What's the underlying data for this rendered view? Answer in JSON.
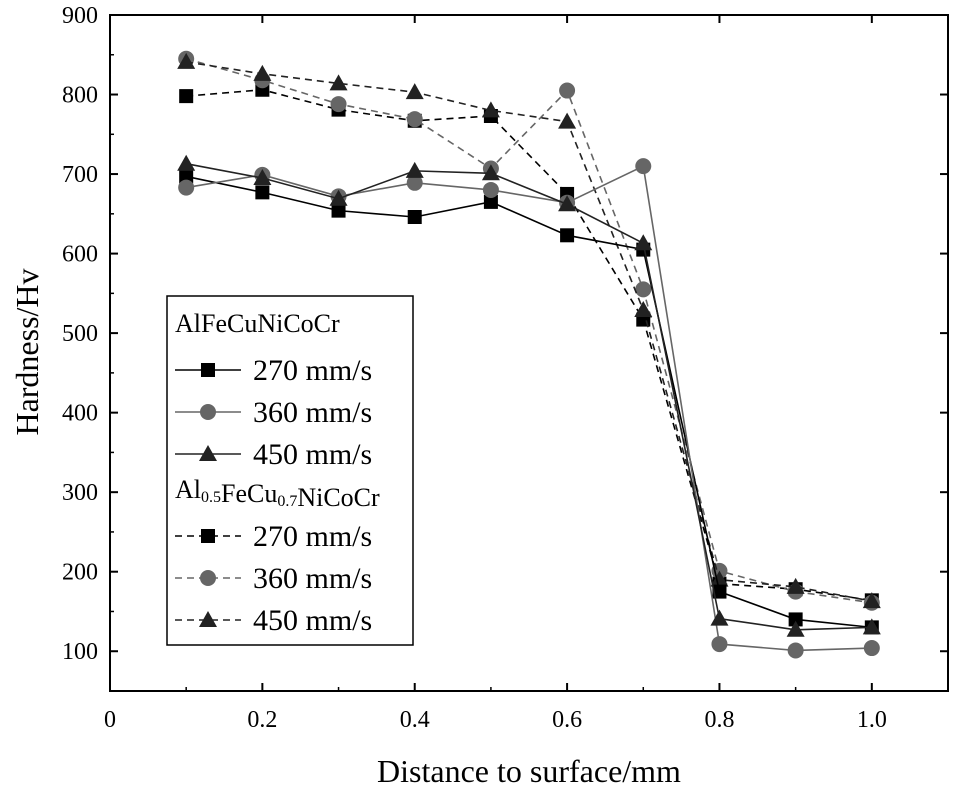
{
  "chart_data": {
    "type": "line",
    "xlabel": "Distance to surface/mm",
    "ylabel": "Hardness/Hv",
    "xlim": [
      0,
      1.1
    ],
    "ylim": [
      50,
      900
    ],
    "xticks": [
      0,
      0.2,
      0.4,
      0.6,
      0.8,
      1.0
    ],
    "xtick_labels": [
      "0",
      "0.2",
      "0.4",
      "0.6",
      "0.8",
      "1.0"
    ],
    "yticks": [
      100,
      200,
      300,
      400,
      500,
      600,
      700,
      800,
      900
    ],
    "ytick_labels": [
      "100",
      "200",
      "300",
      "400",
      "500",
      "600",
      "700",
      "800",
      "900"
    ],
    "x": [
      0.1,
      0.2,
      0.3,
      0.4,
      0.5,
      0.6,
      0.7,
      0.8,
      0.9,
      1.0
    ],
    "legend": {
      "placement": "center-left",
      "groups": [
        {
          "title": "AlFeCuNiCoCr",
          "title_parts": [
            {
              "text": "AlFeCuNiCoCr",
              "sub": false
            }
          ],
          "entries": [
            "270 mm/s",
            "360 mm/s",
            "450 mm/s"
          ]
        },
        {
          "title": "Al0.5FeCu0.7NiCoCr",
          "title_parts": [
            {
              "text": "Al",
              "sub": false
            },
            {
              "text": "0.5",
              "sub": true
            },
            {
              "text": "FeCu",
              "sub": false
            },
            {
              "text": "0.7",
              "sub": true
            },
            {
              "text": "NiCoCr",
              "sub": false
            }
          ],
          "entries": [
            "270 mm/s",
            "360 mm/s",
            "450 mm/s"
          ]
        }
      ]
    },
    "series": [
      {
        "name": "AlFeCuNiCoCr 270 mm/s",
        "group": 0,
        "marker": "square",
        "color": "#000000",
        "dashed": false,
        "values": [
          697,
          677,
          654,
          646,
          665,
          623,
          605,
          175,
          140,
          130
        ]
      },
      {
        "name": "AlFeCuNiCoCr 360 mm/s",
        "group": 0,
        "marker": "circle",
        "color": "#666666",
        "dashed": false,
        "values": [
          683,
          699,
          672,
          689,
          680,
          664,
          710,
          109,
          101,
          104
        ]
      },
      {
        "name": "AlFeCuNiCoCr 450 mm/s",
        "group": 0,
        "marker": "triangle",
        "color": "#222222",
        "dashed": false,
        "values": [
          713,
          695,
          669,
          704,
          701,
          662,
          613,
          141,
          127,
          130
        ]
      },
      {
        "name": "Al0.5FeCu0.7NiCoCr 270 mm/s",
        "group": 1,
        "marker": "square",
        "color": "#000000",
        "dashed": true,
        "values": [
          798,
          806,
          781,
          767,
          773,
          675,
          517,
          185,
          178,
          164
        ]
      },
      {
        "name": "Al0.5FeCu0.7NiCoCr 360 mm/s",
        "group": 1,
        "marker": "circle",
        "color": "#666666",
        "dashed": true,
        "values": [
          845,
          818,
          788,
          769,
          707,
          805,
          555,
          201,
          175,
          161
        ]
      },
      {
        "name": "Al0.5FeCu0.7NiCoCr 450 mm/s",
        "group": 1,
        "marker": "triangle",
        "color": "#222222",
        "dashed": true,
        "values": [
          841,
          826,
          814,
          803,
          780,
          766,
          529,
          190,
          181,
          163
        ]
      }
    ]
  }
}
